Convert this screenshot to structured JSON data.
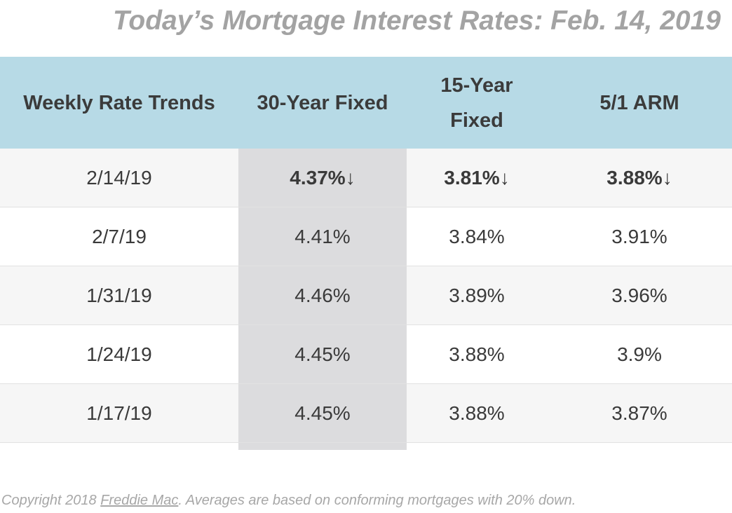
{
  "title": "Today’s Mortgage Interest Rates: Feb. 14, 2019",
  "table": {
    "headers": {
      "col1": "Weekly Rate Trends",
      "col2": "30-Year Fixed",
      "col3": "15-Year Fixed",
      "col4": "5/1 ARM"
    },
    "rows": [
      {
        "date": "2/14/19",
        "fixed30": "4.37%↓",
        "fixed15": "3.81%↓",
        "arm51": "3.88%↓"
      },
      {
        "date": "2/7/19",
        "fixed30": "4.41%",
        "fixed15": "3.84%",
        "arm51": "3.91%"
      },
      {
        "date": "1/31/19",
        "fixed30": "4.46%",
        "fixed15": "3.89%",
        "arm51": "3.96%"
      },
      {
        "date": "1/24/19",
        "fixed30": "4.45%",
        "fixed15": "3.88%",
        "arm51": "3.9%"
      },
      {
        "date": "1/17/19",
        "fixed30": "4.45%",
        "fixed15": "3.88%",
        "arm51": "3.87%"
      }
    ]
  },
  "footer": {
    "prefix": "Copyright 2018 ",
    "link": "Freddie Mac",
    "suffix": ". Averages are based on conforming mortgages with 20% down."
  },
  "colors": {
    "header_bg": "#b7dae6",
    "shaded_column": "#dcdcde",
    "title": "#a3a3a3"
  }
}
